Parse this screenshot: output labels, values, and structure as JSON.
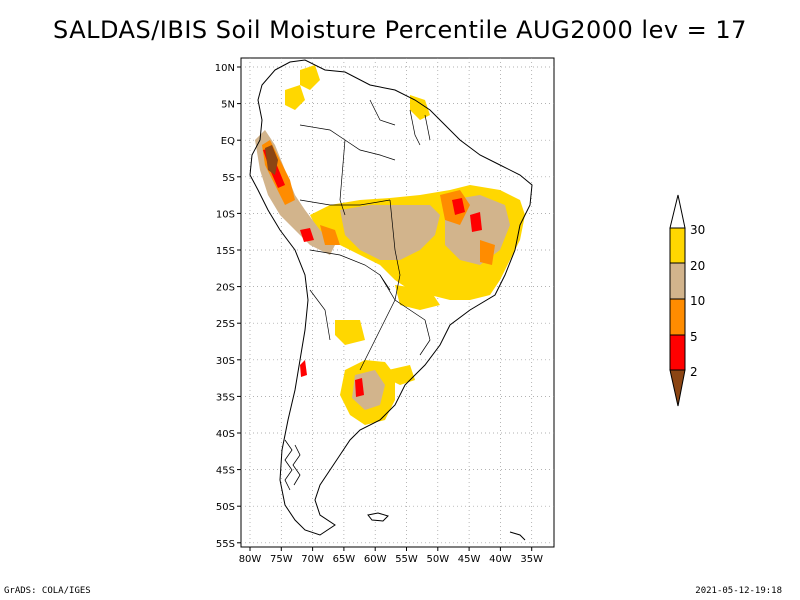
{
  "title": "SALDAS/IBIS Soil Moisture Percentile AUG2000 lev = 17",
  "footer": {
    "left": "GrADS: COLA/IGES",
    "right": "2021-05-12-19:18"
  },
  "map": {
    "lat_labels": [
      "10N",
      "5N",
      "EQ",
      "5S",
      "10S",
      "15S",
      "20S",
      "25S",
      "30S",
      "35S",
      "40S",
      "45S",
      "50S",
      "55S"
    ],
    "lon_labels": [
      "80W",
      "75W",
      "70W",
      "65W",
      "60W",
      "55W",
      "50W",
      "45W",
      "40W",
      "35W"
    ],
    "grid": "dotted"
  },
  "legend": {
    "levels": [
      "2",
      "5",
      "10",
      "20",
      "30"
    ],
    "colors": [
      "#8b4513",
      "#ff0000",
      "#ff8c00",
      "#d2b48c",
      "#ffd700",
      "#ffffff"
    ]
  }
}
